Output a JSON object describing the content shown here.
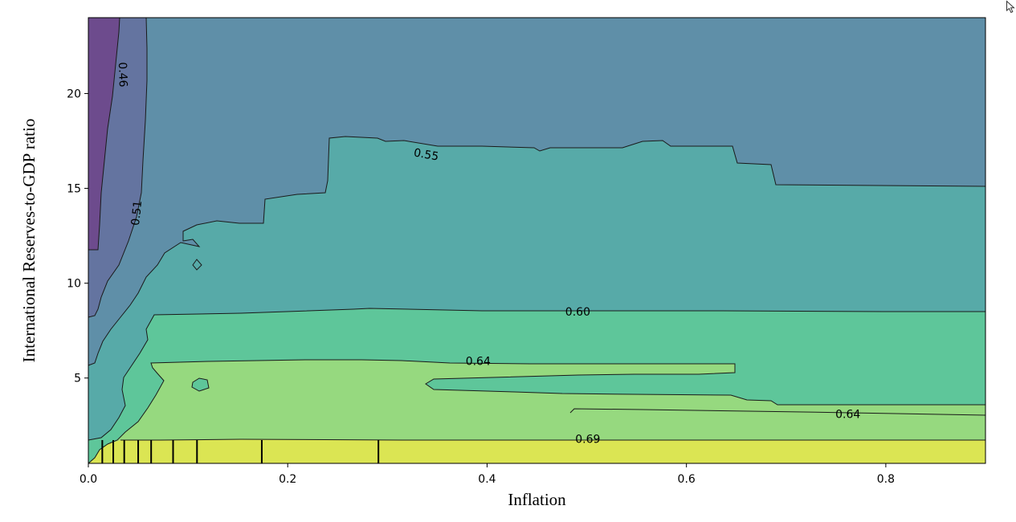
{
  "chart_data": {
    "type": "heatmap",
    "subtype": "partial-dependence-contour",
    "xlabel": "Inflation",
    "ylabel": "International Reserves-to-GDP ratio",
    "xlim": [
      0.0,
      0.9
    ],
    "ylim": [
      0.5,
      24.0
    ],
    "x_ticks": [
      "0.0",
      "0.2",
      "0.4",
      "0.6",
      "0.8"
    ],
    "y_ticks": [
      "5",
      "10",
      "15",
      "20"
    ],
    "levels": [
      0.46,
      0.51,
      0.55,
      0.6,
      0.64,
      0.69
    ],
    "level_colors": [
      "#6d4b8d",
      "#6474a0",
      "#5f8fa8",
      "#57aaa8",
      "#5ec69a",
      "#96d97f",
      "#dbe553"
    ],
    "contour_labels": [
      {
        "text": "0.46",
        "x": 0.035,
        "y": 21.0,
        "rotation": 88
      },
      {
        "text": "0.51",
        "x": 0.048,
        "y": 13.7,
        "rotation": -84
      },
      {
        "text": "0.55",
        "x": 0.339,
        "y": 16.8,
        "rotation": 10
      },
      {
        "text": "0.60",
        "x": 0.491,
        "y": 8.5,
        "rotation": 0
      },
      {
        "text": "0.64",
        "x": 0.391,
        "y": 5.9,
        "rotation": 0
      },
      {
        "text": "0.64",
        "x": 0.762,
        "y": 3.1,
        "rotation": 0
      },
      {
        "text": "0.69",
        "x": 0.501,
        "y": 1.8,
        "rotation": 0
      }
    ],
    "rug_x": [
      0.014,
      0.025,
      0.036,
      0.05,
      0.063,
      0.085,
      0.109,
      0.174,
      0.291
    ],
    "grid": false,
    "legend": "none"
  }
}
